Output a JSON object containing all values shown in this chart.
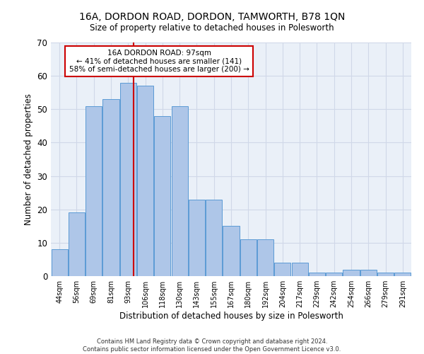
{
  "title": "16A, DORDON ROAD, DORDON, TAMWORTH, B78 1QN",
  "subtitle": "Size of property relative to detached houses in Polesworth",
  "xlabel": "Distribution of detached houses by size in Polesworth",
  "ylabel": "Number of detached properties",
  "bar_labels": [
    "44sqm",
    "56sqm",
    "69sqm",
    "81sqm",
    "93sqm",
    "106sqm",
    "118sqm",
    "130sqm",
    "143sqm",
    "155sqm",
    "167sqm",
    "180sqm",
    "192sqm",
    "204sqm",
    "217sqm",
    "229sqm",
    "242sqm",
    "254sqm",
    "266sqm",
    "279sqm",
    "291sqm"
  ],
  "bar_values": [
    8,
    19,
    51,
    53,
    58,
    57,
    48,
    51,
    23,
    23,
    15,
    11,
    11,
    4,
    4,
    1,
    1,
    2,
    2,
    1,
    1
  ],
  "bar_color": "#aec6e8",
  "bar_edge_color": "#5b9bd5",
  "vline_color": "#cc0000",
  "annotation_text_line1": "16A DORDON ROAD: 97sqm",
  "annotation_text_line2": "← 41% of detached houses are smaller (141)",
  "annotation_text_line3": "58% of semi-detached houses are larger (200) →",
  "annotation_box_color": "#ffffff",
  "annotation_box_edgecolor": "#cc0000",
  "ylim": [
    0,
    70
  ],
  "yticks": [
    0,
    10,
    20,
    30,
    40,
    50,
    60,
    70
  ],
  "grid_color": "#d0d8e8",
  "background_color": "#eaf0f8",
  "footer_line1": "Contains HM Land Registry data © Crown copyright and database right 2024.",
  "footer_line2": "Contains public sector information licensed under the Open Government Licence v3.0."
}
